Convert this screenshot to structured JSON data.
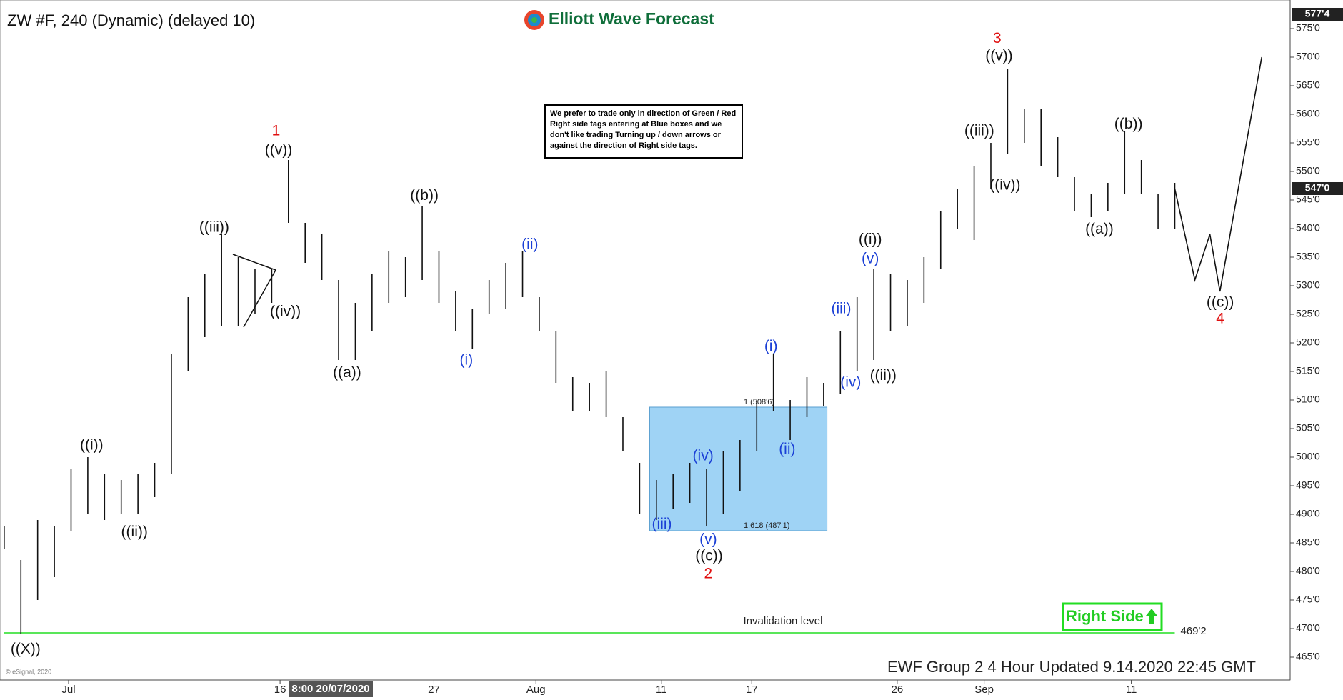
{
  "header": "ZW #F, 240 (Dynamic) (delayed 10)",
  "logo": "Elliott Wave Forecast",
  "note": "We prefer to trade only in direction of Green / Red Right side tags entering at Blue boxes and we don't like trading Turning up / down arrows or against the direction of Right side tags.",
  "right_side": "Right Side",
  "footer": "EWF Group 2 4 Hour Updated 9.14.2020 22:45 GMT",
  "copyright": "© eSignal, 2020",
  "cursor_label": "8:00 20/07/2020",
  "chart_data": {
    "type": "ohlc",
    "color": "#111111",
    "xlim": [
      -0.25,
      76.9
    ],
    "ylim": [
      461,
      580
    ],
    "xticks": [
      {
        "value": 3.85,
        "label": "Jul"
      },
      {
        "value": 16.5,
        "label": "16"
      },
      {
        "value": 25.7,
        "label": "27"
      },
      {
        "value": 31.8,
        "label": "Aug"
      },
      {
        "value": 39.3,
        "label": "11"
      },
      {
        "value": 44.7,
        "label": "17"
      },
      {
        "value": 53.4,
        "label": "26"
      },
      {
        "value": 58.6,
        "label": "Sep"
      },
      {
        "value": 67.4,
        "label": "11"
      }
    ],
    "yticks": [
      {
        "value": 465,
        "label": "465'0"
      },
      {
        "value": 470,
        "label": "470'0"
      },
      {
        "value": 475,
        "label": "475'0"
      },
      {
        "value": 480,
        "label": "480'0"
      },
      {
        "value": 485,
        "label": "485'0"
      },
      {
        "value": 490,
        "label": "490'0"
      },
      {
        "value": 495,
        "label": "495'0"
      },
      {
        "value": 500,
        "label": "500'0"
      },
      {
        "value": 505,
        "label": "505'0"
      },
      {
        "value": 510,
        "label": "510'0"
      },
      {
        "value": 515,
        "label": "515'0"
      },
      {
        "value": 520,
        "label": "520'0"
      },
      {
        "value": 525,
        "label": "525'0"
      },
      {
        "value": 530,
        "label": "530'0"
      },
      {
        "value": 535,
        "label": "535'0"
      },
      {
        "value": 540,
        "label": "540'0"
      },
      {
        "value": 545,
        "label": "545'0"
      },
      {
        "value": 550,
        "label": "550'0"
      },
      {
        "value": 555,
        "label": "555'0"
      },
      {
        "value": 560,
        "label": "560'0"
      },
      {
        "value": 565,
        "label": "565'0"
      },
      {
        "value": 570,
        "label": "570'0"
      },
      {
        "value": 575,
        "label": "575'0"
      }
    ],
    "bars": {
      "high": [
        488,
        482,
        489,
        488,
        498,
        500,
        497,
        496,
        497,
        499,
        518,
        528,
        532,
        539,
        535,
        533,
        533,
        552,
        541,
        539,
        531,
        527,
        532,
        536,
        535,
        544,
        536,
        529,
        526,
        531,
        534,
        536,
        528,
        522,
        514,
        513,
        515,
        507,
        499,
        496,
        497,
        499,
        498,
        501,
        503,
        510,
        518,
        510,
        514,
        513,
        522,
        528,
        533,
        532,
        531,
        535,
        543,
        547,
        551,
        555,
        568,
        561,
        561,
        556,
        549,
        546,
        548,
        557,
        552,
        546,
        548
      ],
      "low": [
        484,
        469,
        475,
        479,
        487,
        490,
        489,
        490,
        490,
        493,
        497,
        515,
        521,
        523,
        523,
        525,
        527,
        541,
        534,
        531,
        517,
        517,
        522,
        527,
        528,
        531,
        527,
        522,
        519,
        525,
        526,
        528,
        522,
        513,
        508,
        508,
        507,
        501,
        490,
        489,
        491,
        492,
        488,
        490,
        494,
        501,
        508,
        503,
        507,
        509,
        511,
        515,
        517,
        522,
        523,
        527,
        533,
        540,
        538,
        547,
        553,
        555,
        551,
        549,
        543,
        542,
        543,
        546,
        546,
        540,
        540
      ]
    },
    "projection": {
      "x": [
        70,
        71.2,
        72.1,
        72.7,
        75.2
      ],
      "values": [
        547,
        531,
        539,
        529,
        570
      ],
      "color": "#111111"
    },
    "last_price": {
      "value": 547,
      "label": "547'0"
    },
    "top_price": {
      "value": 577.5,
      "label": "577'4"
    },
    "invalidation": {
      "value": 469.25,
      "label": "469'2",
      "text": "Invalidation level",
      "color": "#22dd22"
    },
    "fib_box": {
      "x": [
        38.6,
        49.2
      ],
      "color": "#9fd3f5",
      "levels": [
        {
          "value": 508.75,
          "label": "1 (508'6)"
        },
        {
          "value": 487.125,
          "label": "1.618 (487'1)"
        }
      ]
    },
    "annotations": [
      {
        "text": "((X))",
        "x": 1.28,
        "y": 466.3,
        "color": "#111111"
      },
      {
        "text": "((i))",
        "x": 5.23,
        "y": 502,
        "color": "#111111"
      },
      {
        "text": "((ii))",
        "x": 7.79,
        "y": 486.8,
        "color": "#111111"
      },
      {
        "text": "((iii))",
        "x": 12.56,
        "y": 540.1,
        "color": "#111111"
      },
      {
        "text": "((iv))",
        "x": 16.82,
        "y": 525.4,
        "color": "#111111"
      },
      {
        "text": "((v))",
        "x": 16.41,
        "y": 553.6,
        "color": "#111111"
      },
      {
        "text": "1",
        "x": 16.26,
        "y": 557,
        "color": "#e01010"
      },
      {
        "text": "((a))",
        "x": 20.51,
        "y": 514.7,
        "color": "#111111"
      },
      {
        "text": "((b))",
        "x": 25.13,
        "y": 545.7,
        "color": "#111111"
      },
      {
        "text": "(i)",
        "x": 27.64,
        "y": 516.9,
        "color": "#1a3fd6"
      },
      {
        "text": "(ii)",
        "x": 31.44,
        "y": 537.1,
        "color": "#1a3fd6"
      },
      {
        "text": "(iii)",
        "x": 39.33,
        "y": 488.2,
        "color": "#1a3fd6"
      },
      {
        "text": "(iv)",
        "x": 41.79,
        "y": 500.1,
        "color": "#1a3fd6"
      },
      {
        "text": "(v)",
        "x": 42.1,
        "y": 485.5,
        "color": "#1a3fd6"
      },
      {
        "text": "((c))",
        "x": 42.15,
        "y": 482.6,
        "color": "#111111"
      },
      {
        "text": "2",
        "x": 42.1,
        "y": 479.5,
        "color": "#e01010"
      },
      {
        "text": "(i)",
        "x": 45.85,
        "y": 519.3,
        "color": "#1a3fd6"
      },
      {
        "text": "(ii)",
        "x": 46.82,
        "y": 501.3,
        "color": "#1a3fd6"
      },
      {
        "text": "(iii)",
        "x": 50.05,
        "y": 525.9,
        "color": "#1a3fd6"
      },
      {
        "text": "(iv)",
        "x": 50.62,
        "y": 513,
        "color": "#1a3fd6"
      },
      {
        "text": "(v)",
        "x": 51.79,
        "y": 534.6,
        "color": "#1a3fd6"
      },
      {
        "text": "((i))",
        "x": 51.79,
        "y": 538,
        "color": "#111111"
      },
      {
        "text": "((ii))",
        "x": 52.56,
        "y": 514.2,
        "color": "#111111"
      },
      {
        "text": "((iii))",
        "x": 58.31,
        "y": 557,
        "color": "#111111"
      },
      {
        "text": "((iv))",
        "x": 59.85,
        "y": 547.5,
        "color": "#111111"
      },
      {
        "text": "((v))",
        "x": 59.49,
        "y": 570.1,
        "color": "#111111"
      },
      {
        "text": "3",
        "x": 59.38,
        "y": 573.2,
        "color": "#e01010"
      },
      {
        "text": "((a))",
        "x": 65.49,
        "y": 539.8,
        "color": "#111111"
      },
      {
        "text": "((b))",
        "x": 67.23,
        "y": 558.2,
        "color": "#111111"
      },
      {
        "text": "((c))",
        "x": 72.72,
        "y": 527,
        "color": "#111111"
      },
      {
        "text": "4",
        "x": 72.72,
        "y": 524.1,
        "color": "#e01010"
      }
    ]
  }
}
